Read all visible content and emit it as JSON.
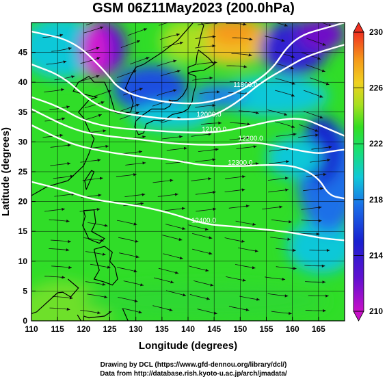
{
  "title": "GSM 06Z11May2023 (200.0hPa)",
  "chart_data": {
    "type": "map",
    "title": "GSM 06Z11May2023 (200.0hPa)",
    "xlabel": "Longitude (degrees)",
    "ylabel": "Latitude (degrees)",
    "x_ticks": [
      110,
      115,
      120,
      125,
      130,
      135,
      140,
      145,
      150,
      155,
      160,
      165
    ],
    "y_ticks": [
      0,
      5,
      10,
      15,
      20,
      25,
      30,
      35,
      40,
      45
    ],
    "xlim": [
      110,
      170
    ],
    "ylim": [
      0,
      50
    ],
    "grid": true,
    "colorbar": {
      "ticks": [
        210,
        214,
        218,
        222,
        226,
        230
      ],
      "range": [
        210,
        230
      ],
      "placement": "right"
    },
    "contours": [
      {
        "label": "11800.0",
        "points": [
          [
            110,
            48.5
          ],
          [
            118,
            47
          ],
          [
            124,
            42
          ],
          [
            127,
            38.5
          ],
          [
            134,
            36.8
          ],
          [
            141,
            36.3
          ],
          [
            146,
            37
          ],
          [
            151,
            39
          ],
          [
            156,
            42
          ],
          [
            159,
            46
          ],
          [
            162,
            48
          ],
          [
            166,
            49
          ],
          [
            170,
            50
          ]
        ]
      },
      {
        "label": "12000.0",
        "points": [
          [
            110,
            43
          ],
          [
            116,
            41
          ],
          [
            121,
            37
          ],
          [
            125,
            35.2
          ],
          [
            131,
            34.3
          ],
          [
            138,
            33.7
          ],
          [
            144,
            34
          ],
          [
            149,
            36.3
          ],
          [
            154,
            40
          ],
          [
            159,
            42.5
          ],
          [
            163,
            44.5
          ],
          [
            170,
            46.3
          ]
        ]
      },
      {
        "label": "12100.0",
        "points": [
          [
            110,
            37.5
          ],
          [
            115,
            36
          ],
          [
            120,
            33.5
          ],
          [
            126,
            32.3
          ],
          [
            132,
            32
          ],
          [
            138,
            31.6
          ],
          [
            145,
            31.5
          ],
          [
            151,
            32.5
          ],
          [
            157,
            33.7
          ],
          [
            162,
            34
          ],
          [
            166,
            32.5
          ],
          [
            170,
            31
          ]
        ]
      },
      {
        "label": "12200.0",
        "points": [
          [
            110,
            35.5
          ],
          [
            118,
            32
          ],
          [
            124,
            31
          ],
          [
            130,
            30.5
          ],
          [
            136,
            29.8
          ],
          [
            142,
            29.5
          ],
          [
            148,
            29.5
          ],
          [
            152,
            30
          ],
          [
            156,
            29.5
          ],
          [
            161,
            28.6
          ],
          [
            165,
            28
          ],
          [
            168,
            28.5
          ],
          [
            170,
            28.7
          ]
        ]
      },
      {
        "label": "12300.0",
        "points": [
          [
            110,
            32.8
          ],
          [
            117,
            29.8
          ],
          [
            123,
            28.5
          ],
          [
            130,
            27.6
          ],
          [
            137,
            27
          ],
          [
            143,
            26
          ],
          [
            150,
            25.9
          ],
          [
            156,
            26.2
          ],
          [
            161,
            25.9
          ],
          [
            165,
            24
          ],
          [
            167,
            21
          ],
          [
            170,
            20.5
          ]
        ]
      },
      {
        "label": "12400.0",
        "points": [
          [
            110,
            23.3
          ],
          [
            116,
            22
          ],
          [
            121,
            20.5
          ],
          [
            126,
            19.8
          ],
          [
            131,
            19.2
          ],
          [
            137,
            18
          ],
          [
            143,
            16.2
          ],
          [
            149,
            15.8
          ],
          [
            155,
            15.3
          ],
          [
            160,
            14.8
          ],
          [
            166,
            13.8
          ],
          [
            170,
            13.5
          ]
        ]
      }
    ]
  },
  "footer": {
    "line1": "Drawing by DCL (https://www.gfd-dennou.org/library/dcl/)",
    "line2": "Data from http://database.rish.kyoto-u.ac.jp/arch/jmadata/"
  },
  "colors": {
    "green": "#22dd22",
    "cyan": "#11d8c8",
    "blue": "#2233dd",
    "magenta": "#dd22cc",
    "orange": "#f59a1a",
    "red": "#f03020"
  }
}
